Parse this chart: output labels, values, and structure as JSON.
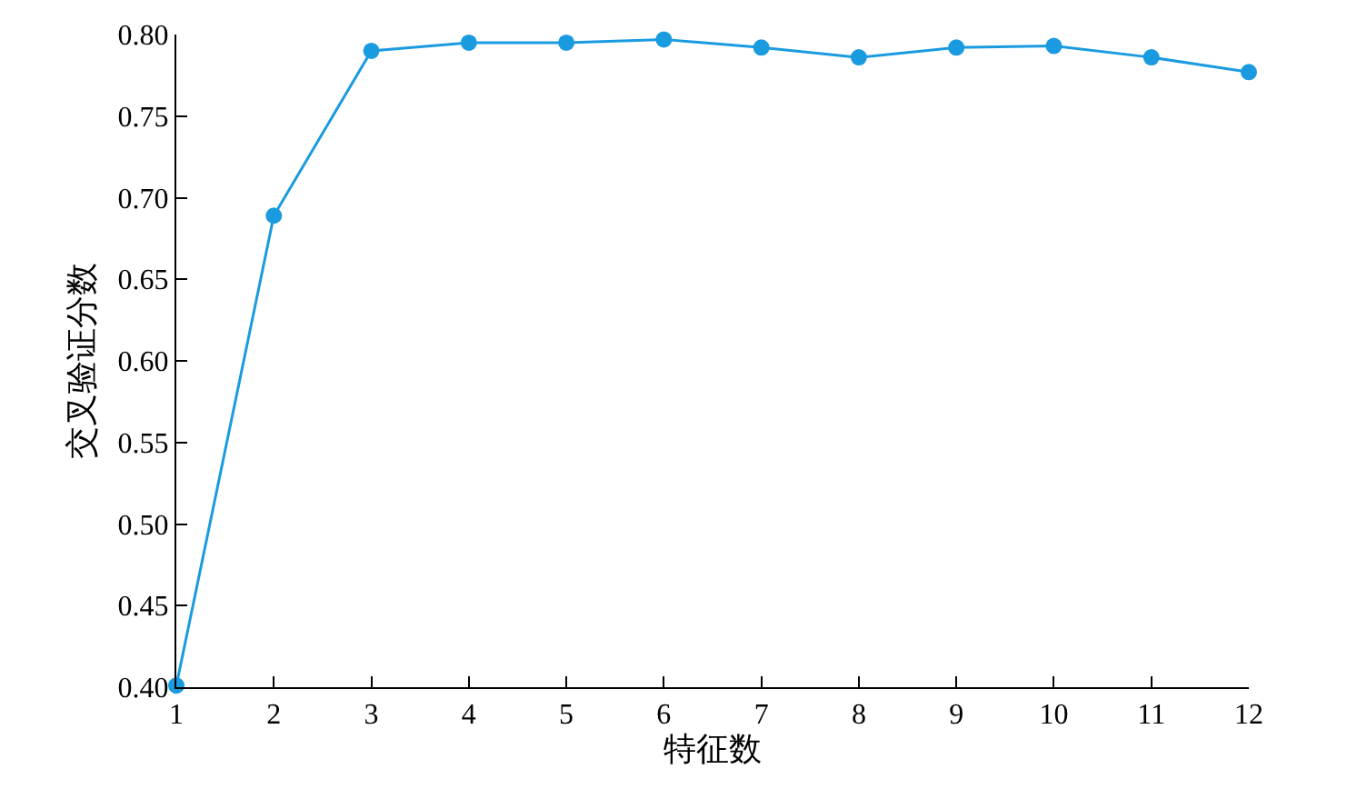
{
  "chart_data": {
    "type": "line",
    "xlabel": "特征数",
    "ylabel": "交叉验证分数",
    "x": [
      1,
      2,
      3,
      4,
      5,
      6,
      7,
      8,
      9,
      10,
      11,
      12
    ],
    "series": [
      {
        "color": "#1a9be0",
        "values": [
          0.401,
          0.689,
          0.79,
          0.795,
          0.795,
          0.797,
          0.792,
          0.786,
          0.792,
          0.793,
          0.786,
          0.777
        ]
      }
    ],
    "xlim": [
      1,
      12
    ],
    "xticks": [
      1,
      2,
      3,
      4,
      5,
      6,
      7,
      8,
      9,
      10,
      11,
      12
    ],
    "ylim": [
      0.4,
      0.8
    ],
    "yticks": [
      {
        "value": 0.4,
        "label": "0.40"
      },
      {
        "value": 0.45,
        "label": "0.45"
      },
      {
        "value": 0.5,
        "label": "0.50"
      },
      {
        "value": 0.55,
        "label": "0.55"
      },
      {
        "value": 0.6,
        "label": "0.60"
      },
      {
        "value": 0.65,
        "label": "0.65"
      },
      {
        "value": 0.7,
        "label": "0.70"
      },
      {
        "value": 0.75,
        "label": "0.75"
      },
      {
        "value": 0.8,
        "label": "0.80"
      }
    ],
    "marker": "circle",
    "line_style": "solid"
  }
}
